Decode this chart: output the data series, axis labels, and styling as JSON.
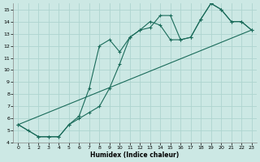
{
  "xlabel": "Humidex (Indice chaleur)",
  "ylabel": "",
  "xlim": [
    -0.5,
    23.5
  ],
  "ylim": [
    4,
    15.5
  ],
  "yticks": [
    4,
    5,
    6,
    7,
    8,
    9,
    10,
    11,
    12,
    13,
    14,
    15
  ],
  "xticks": [
    0,
    1,
    2,
    3,
    4,
    5,
    6,
    7,
    8,
    9,
    10,
    11,
    12,
    13,
    14,
    15,
    16,
    17,
    18,
    19,
    20,
    21,
    22,
    23
  ],
  "bg_color": "#cce8e4",
  "grid_color": "#aed4cf",
  "line_color": "#1a6b5a",
  "series1_x": [
    0,
    1,
    2,
    3,
    4,
    5,
    6,
    7,
    8,
    9,
    10,
    11,
    12,
    13,
    14,
    15,
    16,
    17,
    18,
    19,
    20,
    21,
    22,
    23
  ],
  "series1_y": [
    5.5,
    5.0,
    4.5,
    4.5,
    4.5,
    5.5,
    6.2,
    8.5,
    12.0,
    12.5,
    11.5,
    12.7,
    13.3,
    14.0,
    13.7,
    12.5,
    12.5,
    12.7,
    14.2,
    15.5,
    15.0,
    14.0,
    14.0,
    13.3
  ],
  "series2_x": [
    0,
    2,
    3,
    4,
    5,
    6,
    7,
    8,
    9,
    10,
    11,
    12,
    13,
    14,
    15,
    16,
    17,
    18,
    19,
    20,
    21,
    22,
    23
  ],
  "series2_y": [
    5.5,
    4.5,
    4.5,
    4.5,
    5.5,
    6.0,
    6.5,
    7.0,
    8.5,
    10.5,
    12.7,
    13.3,
    13.5,
    14.5,
    14.5,
    12.5,
    12.7,
    14.2,
    15.5,
    15.0,
    14.0,
    14.0,
    13.3
  ],
  "series3_x": [
    0,
    23
  ],
  "series3_y": [
    5.5,
    13.3
  ]
}
